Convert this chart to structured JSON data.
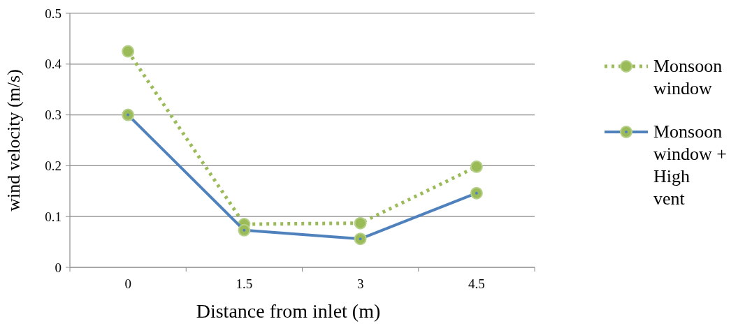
{
  "chart_data": {
    "type": "line",
    "xlabel": "Distance from inlet (m)",
    "ylabel": "wind velocity (m/s)",
    "categories": [
      "0",
      "1.5",
      "3",
      "4.5"
    ],
    "series": [
      {
        "name": "Monsoon window",
        "color": "#9bbb59",
        "line_style": "dotted",
        "values": [
          0.425,
          0.085,
          0.087,
          0.198
        ]
      },
      {
        "name": "Monsoon window + High vent",
        "color": "#4f81bd",
        "line_style": "solid",
        "values": [
          0.3,
          0.073,
          0.056,
          0.146
        ]
      }
    ],
    "ylim": [
      0,
      0.5
    ],
    "yticks": [
      0,
      0.1,
      0.2,
      0.3,
      0.4,
      0.5
    ],
    "grid": "y",
    "legend": "right",
    "marker": "circle"
  }
}
